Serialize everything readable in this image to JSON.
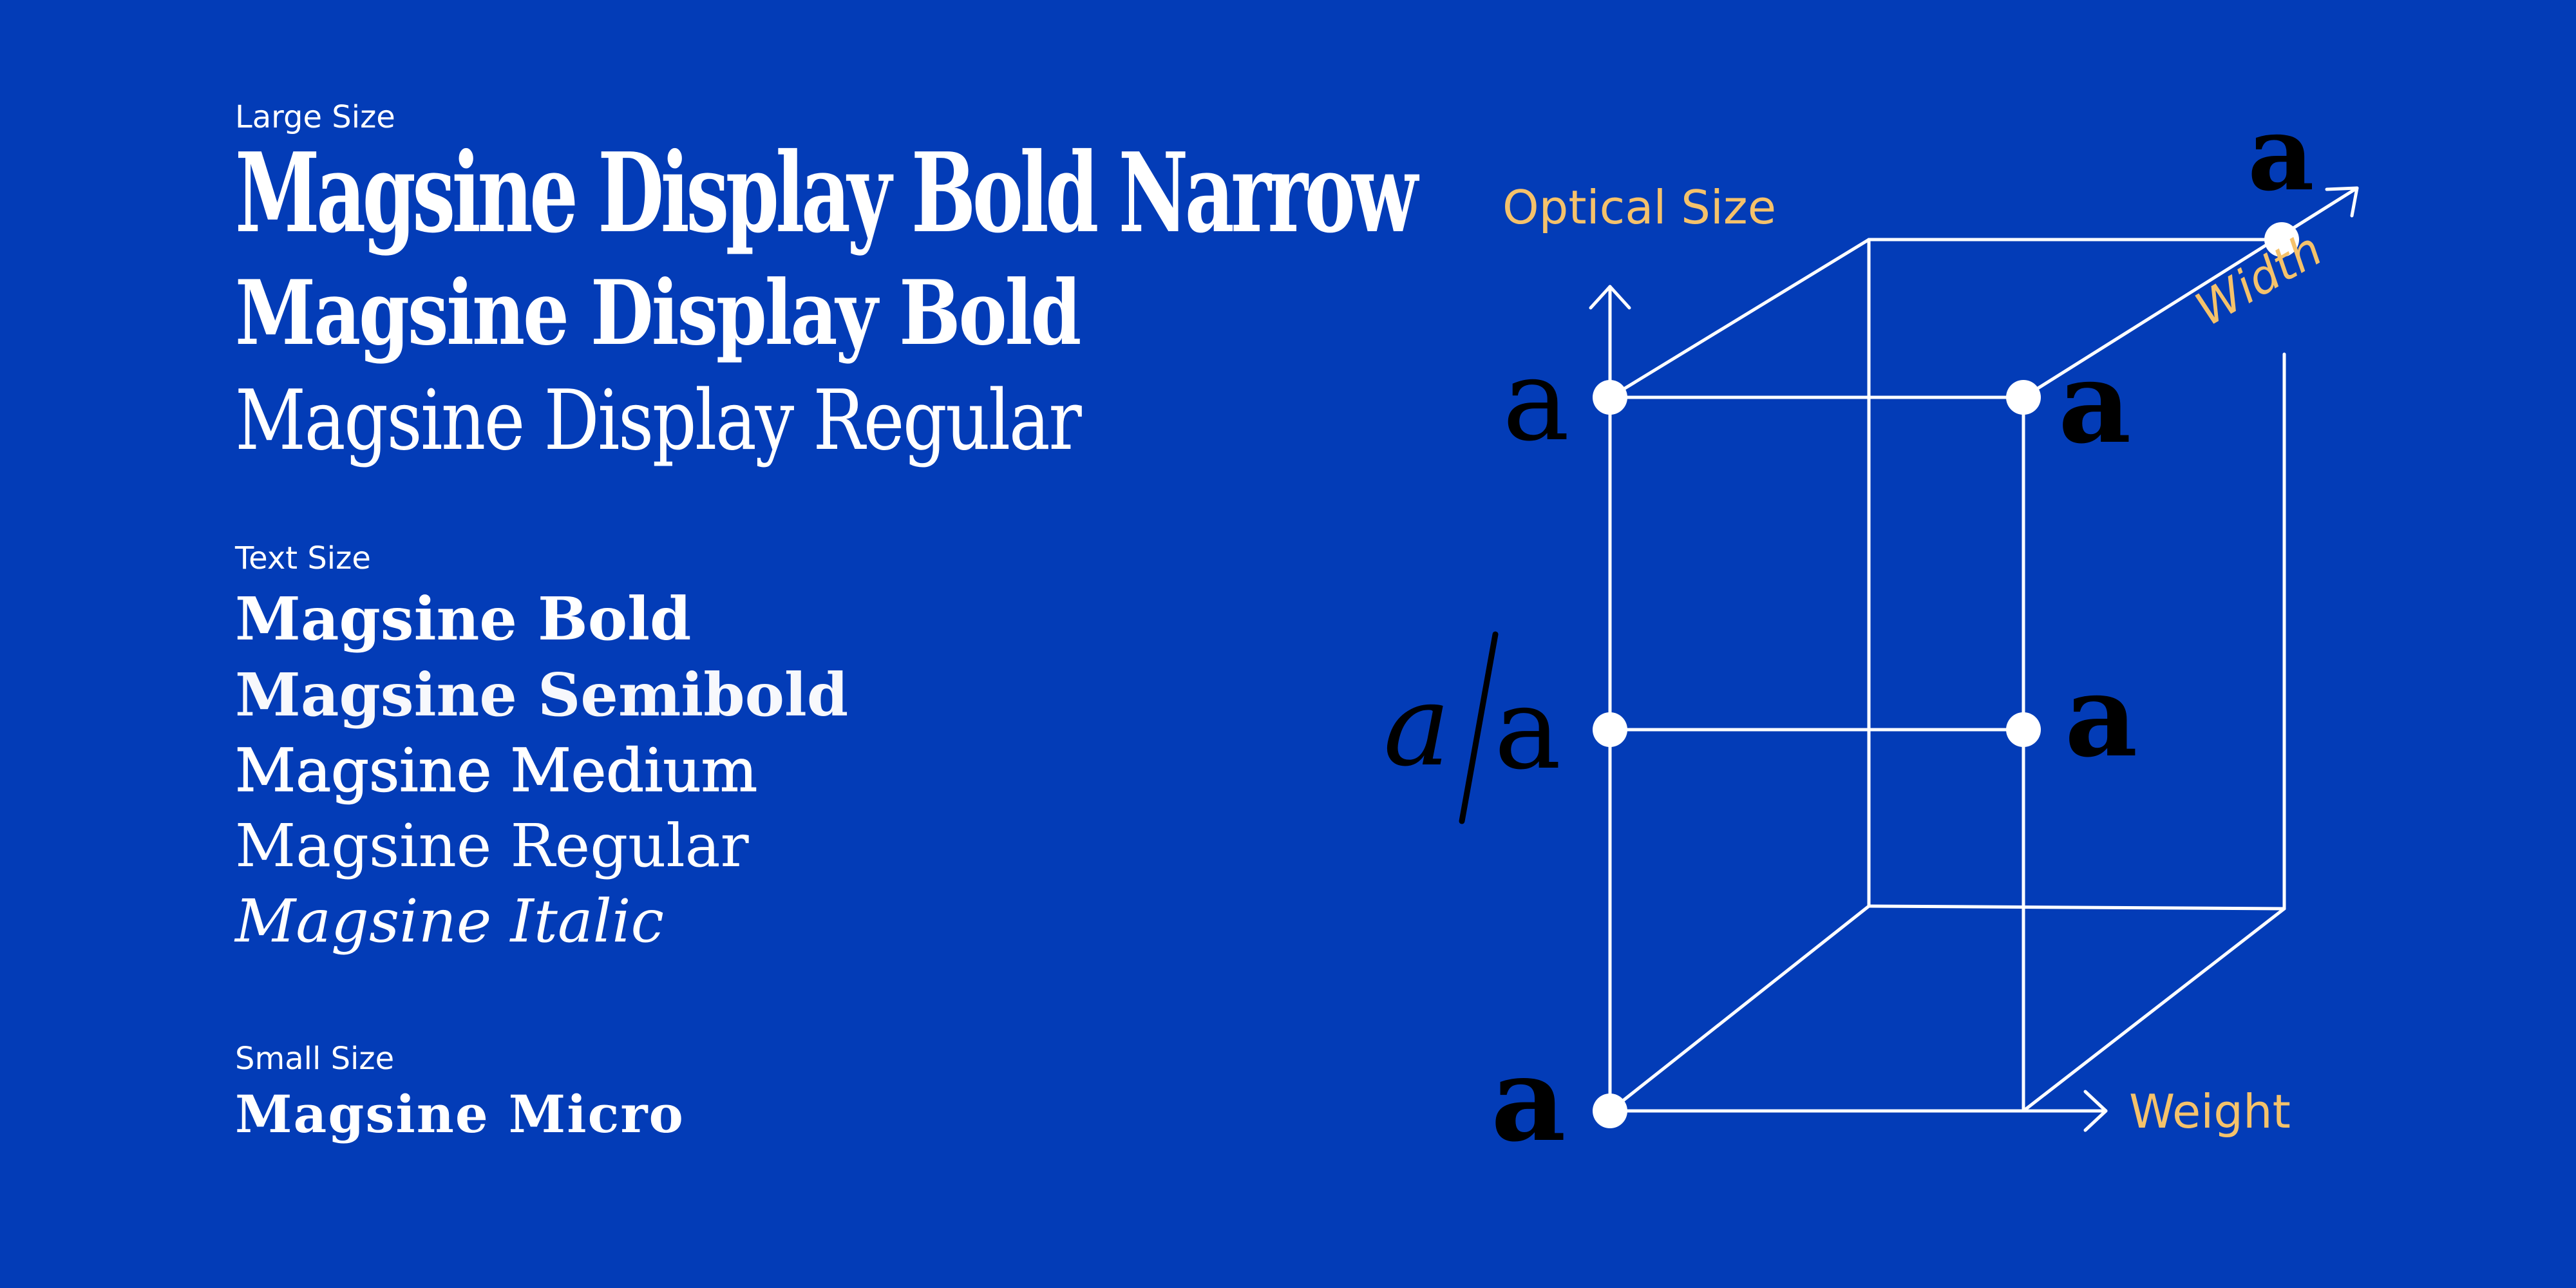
{
  "specimen": {
    "large_size": {
      "label": "Large Size",
      "items": [
        "Magsine Display Bold Narrow",
        "Magsine Display Bold",
        "Magsine Display Regular"
      ]
    },
    "text_size": {
      "label": "Text Size",
      "items": [
        "Magsine Bold",
        "Magsine Semibold",
        "Magsine Medium",
        "Magsine Regular",
        "Magsine Italic"
      ]
    },
    "small_size": {
      "label": "Small Size",
      "items": [
        "Magsine Micro"
      ]
    }
  },
  "diagram": {
    "axes": {
      "optical_size": "Optical Size",
      "weight": "Weight",
      "width": "Width"
    },
    "glyphs": {
      "top_left": "a",
      "top_right": "a",
      "far_top_right": "a",
      "mid_left_italic": "a",
      "mid_left_regular": "a",
      "mid_right": "a",
      "bottom_left": "a"
    }
  },
  "colors": {
    "background": "#033cb7",
    "text": "#ffffff",
    "axis_label": "#f5c26b",
    "glyph_dark": "#000000",
    "lines": "#ffffff"
  }
}
